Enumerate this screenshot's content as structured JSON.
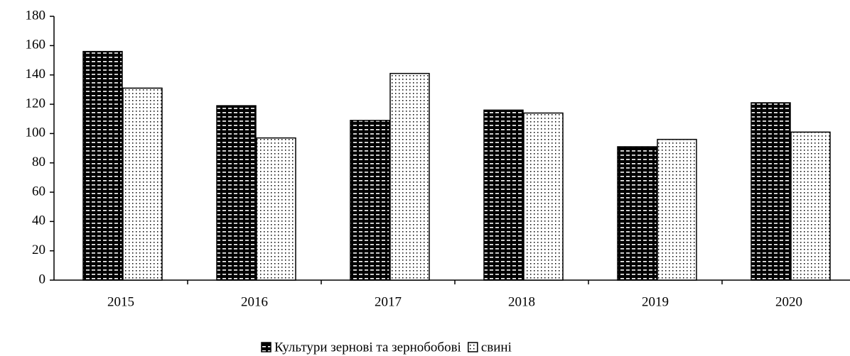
{
  "chart_data": {
    "type": "bar",
    "categories": [
      "2015",
      "2016",
      "2017",
      "2018",
      "2019",
      "2020"
    ],
    "series": [
      {
        "name": "Культури зернові та зернобобові",
        "color": "#000000",
        "values": [
          156,
          119,
          109,
          116,
          91,
          121
        ]
      },
      {
        "name": "свині",
        "color": "#ffffff",
        "values": [
          131,
          97,
          141,
          114,
          96,
          101
        ]
      }
    ],
    "ylim": [
      0,
      180
    ],
    "yticks": [
      0,
      20,
      40,
      60,
      80,
      100,
      120,
      140,
      160,
      180
    ]
  }
}
